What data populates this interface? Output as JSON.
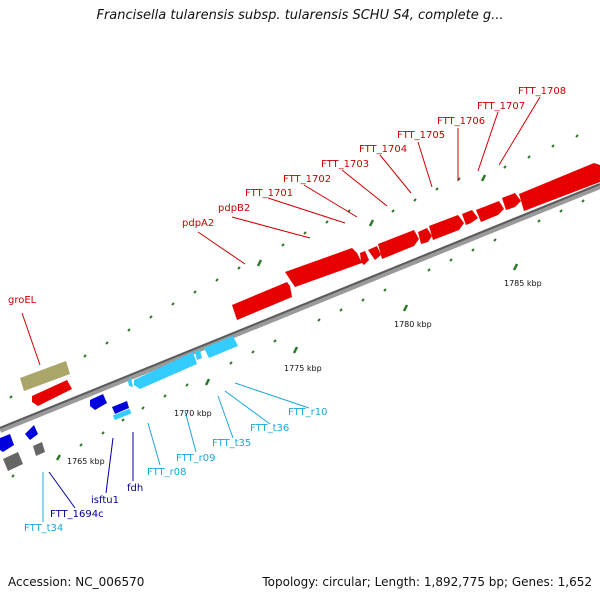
{
  "title": "Francisella tularensis subsp. tularensis SCHU S4, complete g...",
  "footer": {
    "accession": "Accession: NC_006570",
    "summary": "Topology: circular; Length: 1,892,775 bp; Genes: 1,652"
  },
  "colors": {
    "red": "#e60000",
    "cyan": "#33ccff",
    "blue": "#0000dd",
    "olive": "#aaa66a",
    "gray": "#666666",
    "backbone": "#777777",
    "tick": "#2a7a2a",
    "red_label": "#cc0000",
    "cyan_label": "#1aa7d8",
    "navy_label": "#000099"
  },
  "kbp_labels": {
    "k1765": "1765 kbp",
    "k1770": "1770 kbp",
    "k1775": "1775 kbp",
    "k1780": "1780 kbp",
    "k1785": "1785 kbp"
  },
  "gene_labels": {
    "groEL": "groEL",
    "pdpA2": "pdpA2",
    "pdpB2": "pdpB2",
    "FTT_1701": "FTT_1701",
    "FTT_1702": "FTT_1702",
    "FTT_1703": "FTT_1703",
    "FTT_1704": "FTT_1704",
    "FTT_1705": "FTT_1705",
    "FTT_1706": "FTT_1706",
    "FTT_1707": "FTT_1707",
    "FTT_1708": "FTT_1708",
    "FTT_r10": "FTT_r10",
    "FTT_t36": "FTT_t36",
    "FTT_t35": "FTT_t35",
    "FTT_r09": "FTT_r09",
    "FTT_r08": "FTT_r08",
    "fdh": "fdh",
    "isftu1": "isftu1",
    "FTT_1694c": "FTT_1694c",
    "FTT_t34": "FTT_t34"
  }
}
